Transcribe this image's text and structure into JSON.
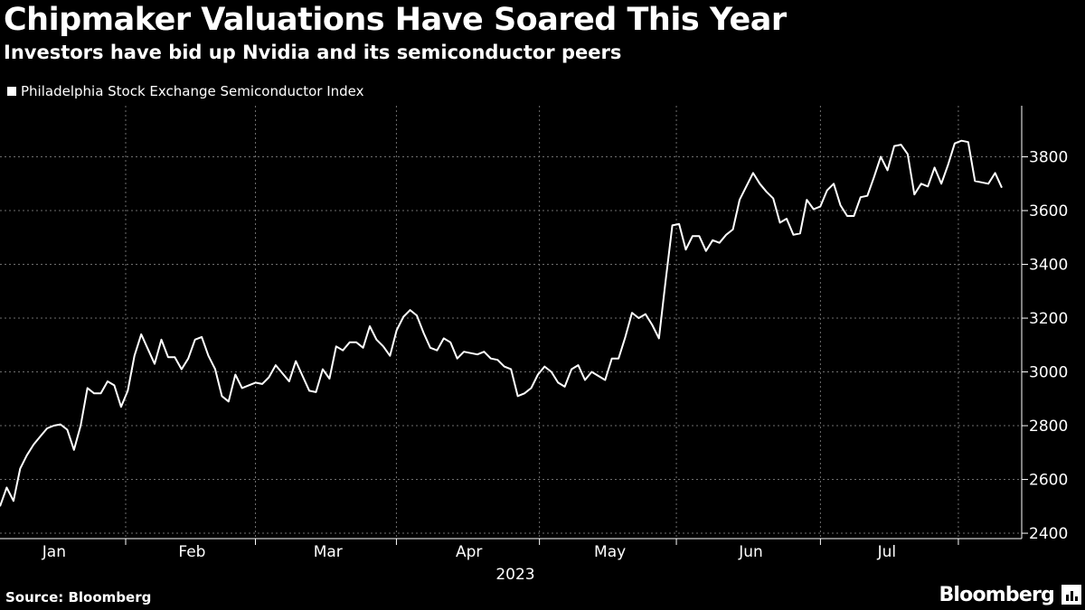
{
  "header": {
    "title": "Chipmaker Valuations Have Soared This Year",
    "subtitle": "Investors have bid up Nvidia and its semiconductor peers"
  },
  "footer": {
    "source": "Source: Bloomberg",
    "brand": "Bloomberg"
  },
  "colors": {
    "background": "#000000",
    "line": "#ffffff",
    "grid": "#6e6e6e"
  },
  "chart_data": {
    "type": "line",
    "title": "Chipmaker Valuations Have Soared This Year",
    "subtitle": "Investors have bid up Nvidia and its semiconductor peers",
    "xlabel": "2023",
    "ylabel": "",
    "ylim": [
      2380,
      3990
    ],
    "yticks": [
      2400,
      2600,
      2800,
      3000,
      3200,
      3400,
      3600,
      3800
    ],
    "xticks": [
      "Jan",
      "Feb",
      "Mar",
      "Apr",
      "May",
      "Jun",
      "Jul"
    ],
    "grid": true,
    "legend": "top-left",
    "series": [
      {
        "name": "Philadelphia Stock Exchange Semiconductor Index",
        "values": [
          2500,
          2570,
          2520,
          2640,
          2690,
          2730,
          2760,
          2790,
          2800,
          2805,
          2785,
          2710,
          2800,
          2940,
          2920,
          2920,
          2965,
          2950,
          2870,
          2930,
          3060,
          3140,
          3085,
          3030,
          3120,
          3055,
          3055,
          3010,
          3050,
          3120,
          3130,
          3060,
          3010,
          2910,
          2890,
          2990,
          2940,
          2950,
          2960,
          2955,
          2980,
          3025,
          2995,
          2965,
          3040,
          2985,
          2930,
          2925,
          3010,
          2975,
          3095,
          3080,
          3110,
          3110,
          3090,
          3170,
          3120,
          3095,
          3060,
          3155,
          3205,
          3230,
          3210,
          3145,
          3090,
          3080,
          3125,
          3110,
          3050,
          3075,
          3070,
          3065,
          3075,
          3050,
          3045,
          3020,
          3010,
          2910,
          2920,
          2940,
          2990,
          3020,
          3000,
          2960,
          2945,
          3010,
          3025,
          2970,
          3000,
          2985,
          2970,
          3050,
          3050,
          3130,
          3220,
          3200,
          3215,
          3175,
          3125,
          3340,
          3545,
          3550,
          3455,
          3505,
          3505,
          3450,
          3490,
          3480,
          3510,
          3530,
          3640,
          3690,
          3740,
          3700,
          3670,
          3645,
          3555,
          3570,
          3510,
          3515,
          3640,
          3605,
          3615,
          3675,
          3700,
          3620,
          3580,
          3580,
          3650,
          3655,
          3725,
          3800,
          3750,
          3840,
          3845,
          3810,
          3660,
          3700,
          3690,
          3760,
          3700,
          3770,
          3850,
          3860,
          3855,
          3710,
          3705,
          3700,
          3740,
          3685
        ]
      }
    ]
  }
}
